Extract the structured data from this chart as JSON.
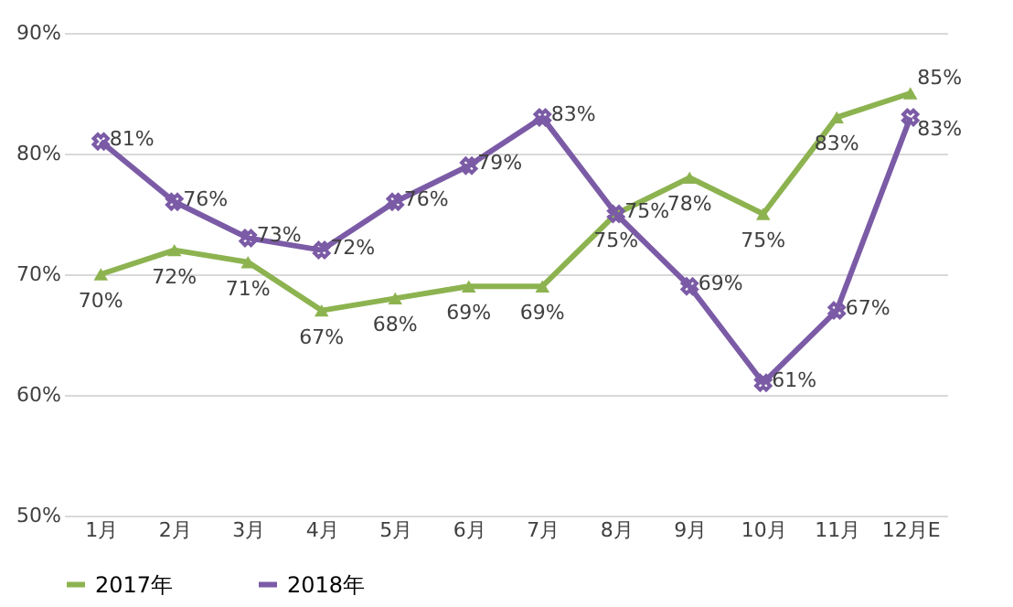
{
  "chart_data": {
    "type": "line",
    "categories": [
      "1月",
      "2月",
      "3月",
      "4月",
      "5月",
      "6月",
      "7月",
      "8月",
      "9月",
      "10月",
      "11月",
      "12月E"
    ],
    "series": [
      {
        "name": "2017年",
        "color": "#8db350",
        "marker": "triangle",
        "values": [
          70,
          72,
          71,
          67,
          68,
          69,
          69,
          75,
          78,
          75,
          83,
          85
        ],
        "value_labels": [
          "70%",
          "72%",
          "71%",
          "67%",
          "68%",
          "69%",
          "69%",
          "75%",
          "78%",
          "75%",
          "83%",
          "85%"
        ]
      },
      {
        "name": "2018年",
        "color": "#7b5ba6",
        "marker": "cross",
        "values": [
          81,
          76,
          73,
          72,
          76,
          79,
          83,
          75,
          69,
          61,
          67,
          83
        ],
        "value_labels": [
          "81%",
          "76%",
          "73%",
          "72%",
          "76%",
          "79%",
          "83%",
          "75%",
          "69%",
          "61%",
          "67%",
          "83%"
        ]
      }
    ],
    "ylim": [
      50,
      90
    ],
    "yticks": [
      {
        "value": 50,
        "label": "50%"
      },
      {
        "value": 60,
        "label": "60%"
      },
      {
        "value": 70,
        "label": "70%"
      },
      {
        "value": 80,
        "label": "80%"
      },
      {
        "value": 90,
        "label": "90%"
      }
    ],
    "grid": "y",
    "legend": "bottom",
    "line_style": "solid"
  }
}
